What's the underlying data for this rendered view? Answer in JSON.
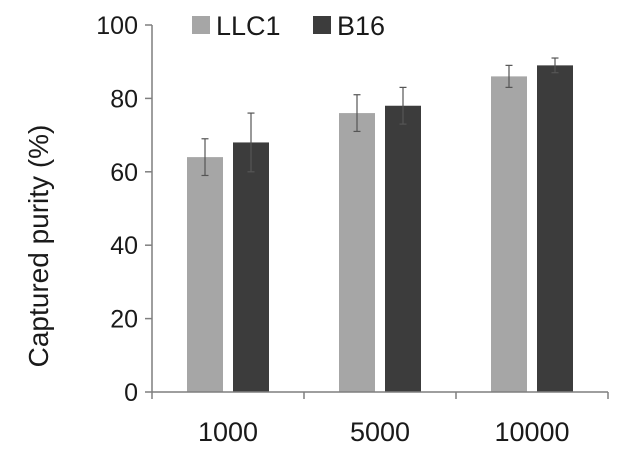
{
  "chart_data": {
    "type": "bar",
    "categories": [
      "1000",
      "5000",
      "10000"
    ],
    "series": [
      {
        "name": "LLC1",
        "color": "#a6a6a6",
        "values": [
          64,
          76,
          86
        ],
        "errors": [
          5,
          5,
          3
        ]
      },
      {
        "name": "B16",
        "color": "#3c3c3c",
        "values": [
          68,
          78,
          89
        ],
        "errors": [
          8,
          5,
          2
        ]
      }
    ],
    "xlabel": "",
    "ylabel": "Captured purity (%)",
    "ylim": [
      0,
      100
    ],
    "yticks": [
      0,
      20,
      40,
      60,
      80,
      100
    ],
    "legend_position": "top",
    "grid": false
  }
}
